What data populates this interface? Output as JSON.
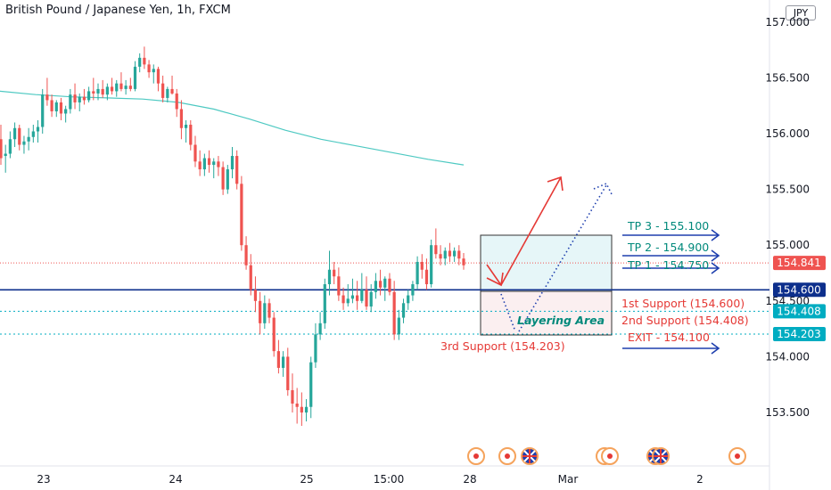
{
  "chart_title": "British Pound / Japanese Yen, 1h, FXCM",
  "currency": "JPY",
  "chart_data": {
    "type": "candlestick",
    "title": "British Pound / Japanese Yen, 1h, FXCM",
    "ylim": [
      153.2,
      157.25
    ],
    "yticks": [
      "157.000",
      "156.500",
      "156.000",
      "155.500",
      "155.000",
      "154.500",
      "154.000",
      "153.500"
    ],
    "xticks": [
      "23",
      "24",
      "25",
      "15:00",
      "28",
      "Mar",
      "2"
    ],
    "grid": false,
    "colors": {
      "up": "#26a69a",
      "down": "#ef5350",
      "ma": "#4ec9c2",
      "support": "#0d2f8c",
      "tp": "#00897b",
      "exit": "#e53935",
      "arrow_blue": "#1e3fae"
    },
    "current_price": "154.841",
    "price_labels": [
      {
        "text": "154.841",
        "value": 154.841,
        "color": "#ef5350"
      },
      {
        "text": "154.600",
        "value": 154.6,
        "color": "#0d2f8c"
      },
      {
        "text": "154.408",
        "value": 154.408,
        "color": "#00acc1"
      },
      {
        "text": "154.203",
        "value": 154.203,
        "color": "#00acc1"
      }
    ],
    "levels": [
      {
        "value": 154.841,
        "style": "dotted",
        "color": "#ef5350"
      },
      {
        "value": 154.6,
        "style": "solid",
        "color": "#0d2f8c"
      },
      {
        "value": 154.408,
        "style": "dotted",
        "color": "#00acc1"
      },
      {
        "value": 154.203,
        "style": "dotted",
        "color": "#00acc1"
      }
    ],
    "annotations": {
      "tp3": "TP 3 - 155.100",
      "tp2": "TP 2 - 154.900",
      "tp1": "TP 1 - 154.750",
      "support1": "1st Support (154.600)",
      "support2": "2nd Support (154.408)",
      "exit": "EXIT - 154.100",
      "support3": "3rd Support (154.203)",
      "layering": "Layering Area"
    },
    "moving_average": [
      [
        0,
        156.38
      ],
      [
        40,
        156.35
      ],
      [
        80,
        156.33
      ],
      [
        120,
        156.32
      ],
      [
        160,
        156.31
      ],
      [
        200,
        156.28
      ],
      [
        240,
        156.22
      ],
      [
        280,
        156.13
      ],
      [
        320,
        156.03
      ],
      [
        360,
        155.95
      ],
      [
        400,
        155.89
      ],
      [
        440,
        155.83
      ],
      [
        480,
        155.77
      ],
      [
        520,
        155.72
      ]
    ],
    "candles": [
      [
        155.95,
        156.08,
        155.72,
        155.78
      ],
      [
        155.8,
        155.9,
        155.65,
        155.82
      ],
      [
        155.82,
        156.02,
        155.78,
        155.95
      ],
      [
        155.95,
        156.1,
        155.88,
        156.05
      ],
      [
        156.05,
        156.08,
        155.85,
        155.9
      ],
      [
        155.9,
        155.98,
        155.82,
        155.93
      ],
      [
        155.93,
        156.05,
        155.85,
        155.97
      ],
      [
        155.97,
        156.08,
        155.92,
        156.02
      ],
      [
        156.02,
        156.12,
        155.92,
        156.06
      ],
      [
        156.06,
        156.4,
        156.0,
        156.35
      ],
      [
        156.35,
        156.5,
        156.25,
        156.3
      ],
      [
        156.3,
        156.35,
        156.15,
        156.2
      ],
      [
        156.2,
        156.3,
        156.15,
        156.28
      ],
      [
        156.28,
        156.32,
        156.12,
        156.18
      ],
      [
        156.18,
        156.25,
        156.1,
        156.22
      ],
      [
        156.22,
        156.4,
        156.18,
        156.35
      ],
      [
        156.35,
        156.45,
        156.22,
        156.28
      ],
      [
        156.28,
        156.36,
        156.2,
        156.33
      ],
      [
        156.33,
        156.4,
        156.26,
        156.3
      ],
      [
        156.3,
        156.42,
        156.28,
        156.38
      ],
      [
        156.38,
        156.5,
        156.3,
        156.36
      ],
      [
        156.36,
        156.45,
        156.3,
        156.4
      ],
      [
        156.4,
        156.48,
        156.32,
        156.35
      ],
      [
        156.35,
        156.45,
        156.3,
        156.42
      ],
      [
        156.42,
        156.5,
        156.35,
        156.38
      ],
      [
        156.38,
        156.48,
        156.33,
        156.45
      ],
      [
        156.45,
        156.55,
        156.38,
        156.4
      ],
      [
        156.4,
        156.48,
        156.35,
        156.43
      ],
      [
        156.43,
        156.5,
        156.38,
        156.4
      ],
      [
        156.4,
        156.65,
        156.38,
        156.6
      ],
      [
        156.6,
        156.72,
        156.55,
        156.68
      ],
      [
        156.68,
        156.78,
        156.58,
        156.62
      ],
      [
        156.62,
        156.66,
        156.5,
        156.55
      ],
      [
        156.55,
        156.62,
        156.45,
        156.58
      ],
      [
        156.58,
        156.6,
        156.38,
        156.45
      ],
      [
        156.45,
        156.52,
        156.28,
        156.32
      ],
      [
        156.32,
        156.42,
        156.28,
        156.4
      ],
      [
        156.4,
        156.52,
        156.35,
        156.36
      ],
      [
        156.36,
        156.4,
        156.15,
        156.22
      ],
      [
        156.22,
        156.3,
        155.95,
        156.05
      ],
      [
        156.05,
        156.12,
        155.92,
        156.08
      ],
      [
        156.08,
        156.12,
        155.85,
        155.9
      ],
      [
        155.9,
        155.98,
        155.7,
        155.75
      ],
      [
        155.75,
        155.85,
        155.62,
        155.68
      ],
      [
        155.68,
        155.82,
        155.62,
        155.78
      ],
      [
        155.78,
        155.85,
        155.65,
        155.72
      ],
      [
        155.72,
        155.78,
        155.6,
        155.75
      ],
      [
        155.75,
        155.8,
        155.62,
        155.7
      ],
      [
        155.7,
        155.75,
        155.45,
        155.5
      ],
      [
        155.5,
        155.72,
        155.46,
        155.68
      ],
      [
        155.68,
        155.88,
        155.6,
        155.8
      ],
      [
        155.8,
        155.85,
        155.5,
        155.55
      ],
      [
        155.55,
        155.62,
        154.95,
        155.0
      ],
      [
        155.0,
        155.08,
        154.78,
        154.82
      ],
      [
        154.82,
        154.92,
        154.55,
        154.6
      ],
      [
        154.6,
        154.72,
        154.4,
        154.5
      ],
      [
        154.5,
        154.58,
        154.2,
        154.3
      ],
      [
        154.3,
        154.55,
        154.25,
        154.48
      ],
      [
        154.48,
        154.52,
        154.3,
        154.35
      ],
      [
        154.35,
        154.4,
        154.0,
        154.05
      ],
      [
        154.05,
        154.15,
        153.85,
        153.9
      ],
      [
        153.9,
        154.05,
        153.82,
        154.0
      ],
      [
        154.0,
        154.08,
        153.65,
        153.7
      ],
      [
        153.7,
        153.85,
        153.5,
        153.58
      ],
      [
        153.58,
        153.72,
        153.4,
        153.55
      ],
      [
        153.55,
        153.68,
        153.38,
        153.5
      ],
      [
        153.5,
        153.62,
        153.42,
        153.55
      ],
      [
        153.55,
        154.0,
        153.45,
        153.95
      ],
      [
        153.95,
        154.3,
        153.9,
        154.2
      ],
      [
        154.2,
        154.4,
        154.15,
        154.3
      ],
      [
        154.3,
        154.7,
        154.25,
        154.65
      ],
      [
        154.65,
        154.95,
        154.55,
        154.78
      ],
      [
        154.78,
        154.85,
        154.65,
        154.72
      ],
      [
        154.72,
        154.8,
        154.5,
        154.55
      ],
      [
        154.55,
        154.62,
        154.42,
        154.48
      ],
      [
        154.48,
        154.65,
        154.45,
        154.52
      ],
      [
        154.52,
        154.7,
        154.48,
        154.55
      ],
      [
        154.55,
        154.68,
        154.42,
        154.5
      ],
      [
        154.5,
        154.75,
        154.48,
        154.6
      ],
      [
        154.6,
        154.72,
        154.42,
        154.45
      ],
      [
        154.45,
        154.65,
        154.4,
        154.58
      ],
      [
        154.58,
        154.75,
        154.52,
        154.68
      ],
      [
        154.68,
        154.78,
        154.55,
        154.62
      ],
      [
        154.62,
        154.72,
        154.5,
        154.7
      ],
      [
        154.7,
        154.75,
        154.55,
        154.58
      ],
      [
        154.58,
        154.68,
        154.15,
        154.2
      ],
      [
        154.2,
        154.42,
        154.15,
        154.35
      ],
      [
        154.35,
        154.52,
        154.3,
        154.48
      ],
      [
        154.48,
        154.6,
        154.42,
        154.55
      ],
      [
        154.55,
        154.68,
        154.5,
        154.65
      ],
      [
        154.65,
        154.9,
        154.6,
        154.85
      ],
      [
        154.85,
        154.92,
        154.7,
        154.78
      ],
      [
        154.78,
        154.88,
        154.6,
        154.65
      ],
      [
        154.65,
        155.05,
        154.62,
        155.0
      ],
      [
        155.0,
        155.15,
        154.88,
        154.92
      ],
      [
        154.92,
        155.0,
        154.82,
        154.88
      ],
      [
        154.88,
        154.98,
        154.82,
        154.95
      ],
      [
        154.95,
        155.02,
        154.85,
        154.9
      ],
      [
        154.9,
        154.98,
        154.85,
        154.95
      ],
      [
        154.95,
        155.0,
        154.82,
        154.88
      ],
      [
        154.88,
        154.93,
        154.78,
        154.82
      ]
    ]
  }
}
